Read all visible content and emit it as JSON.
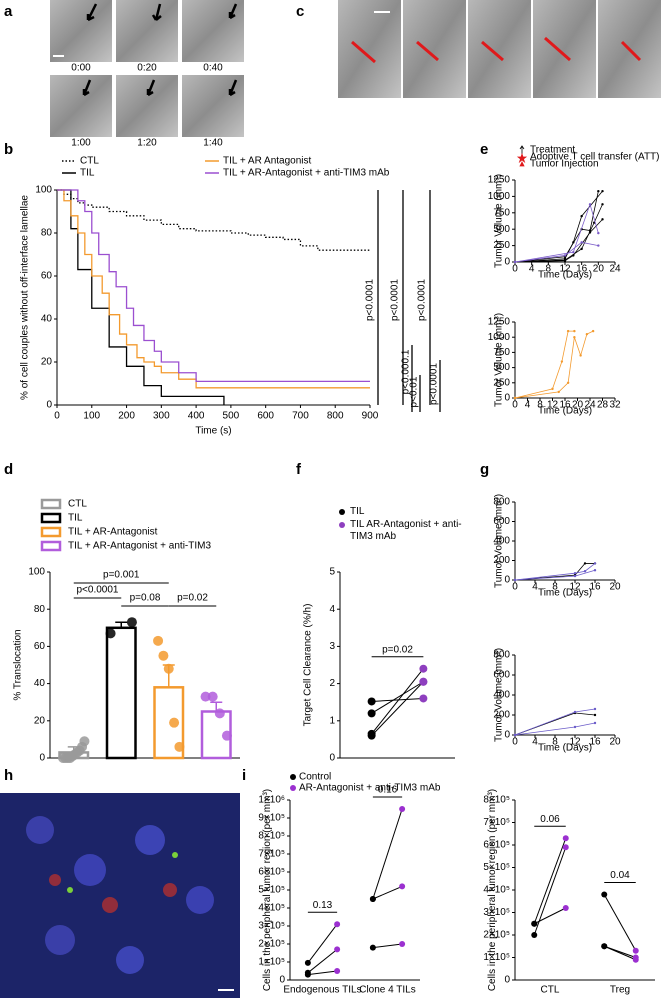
{
  "figure": {
    "panel_labels": [
      "a",
      "b",
      "c",
      "d",
      "e",
      "f",
      "g",
      "h",
      "i"
    ],
    "timestamps": [
      "0:00",
      "0:20",
      "0:40",
      "1:00",
      "1:20",
      "1:40"
    ]
  },
  "chart_data": [
    {
      "type": "line",
      "step": true,
      "xlabel": "Time (s)",
      "ylabel": "% of cell couples without off-interface lamellae",
      "xlim": [
        0,
        900
      ],
      "xticks": [
        0,
        100,
        200,
        300,
        400,
        500,
        600,
        700,
        800,
        900
      ],
      "ylim": [
        0,
        100
      ],
      "yticks": [
        0,
        20,
        40,
        60,
        80,
        100
      ],
      "series": [
        {
          "name": "CTL",
          "color": "#000000",
          "style": "dotted",
          "x": [
            0,
            20,
            40,
            60,
            80,
            100,
            150,
            200,
            250,
            300,
            350,
            400,
            450,
            500,
            550,
            600,
            650,
            700,
            750,
            900
          ],
          "values": [
            100,
            98,
            96,
            94,
            93,
            92,
            90,
            88,
            86,
            84,
            82,
            81,
            81,
            80,
            79,
            78,
            77,
            74,
            72,
            72
          ]
        },
        {
          "name": "TIL",
          "color": "#000000",
          "style": "solid",
          "x": [
            0,
            40,
            60,
            100,
            150,
            200,
            250,
            300,
            400,
            480
          ],
          "values": [
            100,
            82,
            63,
            45,
            27,
            18,
            9,
            4,
            4,
            0
          ]
        },
        {
          "name": "TIL + AR Antagonist",
          "color": "#f39a2e",
          "style": "solid",
          "x": [
            0,
            20,
            40,
            60,
            80,
            100,
            130,
            150,
            180,
            200,
            230,
            250,
            280,
            300,
            350,
            400,
            480,
            900
          ],
          "values": [
            100,
            95,
            88,
            80,
            70,
            60,
            52,
            42,
            33,
            28,
            22,
            20,
            18,
            15,
            12,
            8,
            8,
            8
          ]
        },
        {
          "name": "TIL + AR-Antagonist  + anti-TIM3 mAb",
          "color": "#9b4fd0",
          "style": "solid",
          "x": [
            0,
            60,
            80,
            100,
            120,
            150,
            170,
            200,
            220,
            250,
            280,
            300,
            350,
            400,
            450,
            900
          ],
          "values": [
            100,
            95,
            90,
            80,
            70,
            62,
            55,
            45,
            37,
            30,
            25,
            20,
            15,
            11,
            11,
            11
          ]
        }
      ],
      "annotations": [
        "p<0.0001",
        "p<0.0001",
        "p<0.0001",
        "p<0.000.1",
        "p<0.01",
        "p<0.0001"
      ]
    },
    {
      "type": "bar",
      "ylabel": "% Translocation",
      "ylim": [
        0,
        100
      ],
      "yticks": [
        0,
        20,
        40,
        60,
        80,
        100
      ],
      "categories": [
        "CTL",
        "TIL",
        "TIL + AR-Antagonist",
        "TIL + AR-Antagonist + anti-TIM3"
      ],
      "colors": [
        "#9a9a9a",
        "#000000",
        "#f39a2e",
        "#b15ddc"
      ],
      "values": [
        3,
        70,
        38,
        25
      ],
      "errors": [
        3,
        3,
        12,
        5
      ],
      "points": [
        [
          0,
          0,
          0,
          0,
          1,
          2,
          3,
          4,
          6,
          9
        ],
        [
          67,
          73
        ],
        [
          63,
          55,
          48,
          19,
          6
        ],
        [
          33,
          33,
          24,
          12
        ]
      ],
      "annotations": [
        "p=0.001",
        "p<0.0001",
        "p=0.08",
        "p=0.02"
      ]
    },
    {
      "type": "paired",
      "ylabel": "Target Cell Clearance (%/h)",
      "ylim": [
        0,
        5
      ],
      "yticks": [
        0,
        1,
        2,
        3,
        4,
        5
      ],
      "categories": [
        null
      ],
      "series": [
        {
          "name": "TIL",
          "color": "#000000",
          "values": [
            [
              1.52,
              1.2,
              0.65,
              0.6
            ]
          ]
        },
        {
          "name": "TIL AR-Antagonist + anti-TIM3 mAb",
          "color": "#8e3fbf",
          "values": [
            [
              1.6,
              2.05,
              2.4,
              2.05
            ]
          ]
        }
      ],
      "pvalues": [
        "p=0.02"
      ]
    },
    {
      "type": "line",
      "xlabel": "Time (Days)",
      "ylabel": "Tumor Volume (mm³)",
      "xlim": [
        0,
        24
      ],
      "xticks": [
        0,
        4,
        8,
        12,
        16,
        20,
        24
      ],
      "ylim": [
        0,
        1250
      ],
      "yticks": [
        0,
        250,
        500,
        750,
        1000,
        1250
      ],
      "symbol_legend": [
        "Treatment",
        "Adoptive T cell transfer (ATT)",
        "Tumor Injection"
      ],
      "series": [
        {
          "color": "#000000",
          "x": [
            0,
            12,
            16,
            18,
            20
          ],
          "values": [
            0,
            80,
            500,
            480,
            1080
          ]
        },
        {
          "color": "#000000",
          "x": [
            0,
            12,
            14,
            16,
            21
          ],
          "values": [
            0,
            50,
            300,
            700,
            1080
          ]
        },
        {
          "color": "#000000",
          "x": [
            0,
            12,
            16,
            19,
            21
          ],
          "values": [
            0,
            30,
            200,
            600,
            880
          ]
        },
        {
          "color": "#000000",
          "x": [
            0,
            12,
            14,
            18,
            21
          ],
          "values": [
            0,
            20,
            100,
            450,
            650
          ]
        },
        {
          "color": "#7b5cc9",
          "x": [
            0,
            12,
            16,
            20
          ],
          "values": [
            0,
            100,
            300,
            250
          ]
        },
        {
          "color": "#7b5cc9",
          "x": [
            0,
            14,
            18,
            20
          ],
          "values": [
            0,
            150,
            880,
            440
          ]
        }
      ]
    },
    {
      "type": "line",
      "xlabel": "Time (Days)",
      "ylabel": "Tumor Volume (mm³)",
      "xlim": [
        0,
        32
      ],
      "xticks": [
        0,
        4,
        8,
        12,
        16,
        20,
        24,
        28,
        32
      ],
      "ylim": [
        0,
        1250
      ],
      "yticks": [
        0,
        250,
        500,
        750,
        1000,
        1250
      ],
      "series": [
        {
          "color": "#f39a2e",
          "x": [
            0,
            12,
            15,
            17,
            19
          ],
          "values": [
            0,
            150,
            600,
            1100,
            1100
          ]
        },
        {
          "color": "#f39a2e",
          "x": [
            0,
            14,
            17,
            19,
            21,
            23,
            25
          ],
          "values": [
            0,
            100,
            250,
            1000,
            700,
            1050,
            1100
          ]
        }
      ]
    },
    {
      "type": "line",
      "xlabel": "Time (Days)",
      "ylabel": "Tumor Volume (mm³)",
      "xlim": [
        0,
        20
      ],
      "xticks": [
        0,
        4,
        8,
        12,
        16,
        20
      ],
      "ylim": [
        0,
        800
      ],
      "yticks": [
        0,
        200,
        400,
        600,
        800
      ],
      "series": [
        {
          "color": "#000000",
          "x": [
            0,
            12,
            14,
            16
          ],
          "values": [
            0,
            50,
            170,
            170
          ]
        },
        {
          "color": "#6b5cc9",
          "x": [
            0,
            12,
            14,
            16
          ],
          "values": [
            0,
            70,
            90,
            170
          ]
        },
        {
          "color": "#6b5cc9",
          "x": [
            0,
            12,
            16
          ],
          "values": [
            0,
            40,
            100
          ]
        }
      ]
    },
    {
      "type": "line",
      "xlabel": "Time (Days)",
      "ylabel": "Tumor Volume (mm³)",
      "xlim": [
        0,
        20
      ],
      "xticks": [
        0,
        4,
        8,
        12,
        16,
        20
      ],
      "ylim": [
        0,
        800
      ],
      "yticks": [
        0,
        200,
        400,
        600,
        800
      ],
      "series": [
        {
          "color": "#000000",
          "x": [
            0,
            12,
            16
          ],
          "values": [
            0,
            220,
            200
          ]
        },
        {
          "color": "#6b5cc9",
          "x": [
            0,
            12,
            16
          ],
          "values": [
            0,
            80,
            120
          ]
        },
        {
          "color": "#6b5cc9",
          "x": [
            0,
            12,
            16
          ],
          "values": [
            0,
            230,
            260
          ]
        }
      ]
    },
    {
      "type": "paired",
      "ylabel": "Cells in the peripheral tumor region (per mm³)",
      "ylim": [
        0,
        1000000
      ],
      "yticks": [
        0,
        {
          "value": 100000,
          "label": "1×10⁵"
        },
        {
          "value": 200000,
          "label": "2×10⁵"
        },
        {
          "value": 300000,
          "label": "3×10⁵"
        },
        {
          "value": 400000,
          "label": "4×10⁵"
        },
        {
          "value": 500000,
          "label": "5×10⁵"
        },
        {
          "value": 600000,
          "label": "6×10⁵"
        },
        {
          "value": 700000,
          "label": "7×10⁵"
        },
        {
          "value": 800000,
          "label": "8×10⁵"
        },
        {
          "value": 900000,
          "label": "9×10⁵"
        },
        {
          "value": 1000000,
          "label": "1×10⁶"
        }
      ],
      "categories": [
        "Endogenous TILs",
        "Clone 4 TILs"
      ],
      "series": [
        {
          "name": "Control",
          "color": "#000000",
          "values": [
            [
              95000,
              40000,
              30000
            ],
            [
              450000,
              450000,
              180000
            ]
          ]
        },
        {
          "name": "AR-Antagonist + anti-TIM3 mAb",
          "color": "#9b30d0",
          "values": [
            [
              310000,
              170000,
              50000
            ],
            [
              950000,
              520000,
              200000
            ]
          ]
        }
      ],
      "pvalues": [
        "0.13",
        "0.16"
      ]
    },
    {
      "type": "paired",
      "ylabel": "Cells in the peripheral tumor region (per mm³)",
      "ylim": [
        0,
        800000
      ],
      "yticks": [
        0,
        {
          "value": 100000,
          "label": "1×10⁵"
        },
        {
          "value": 200000,
          "label": "2×10⁵"
        },
        {
          "value": 300000,
          "label": "3×10⁵"
        },
        {
          "value": 400000,
          "label": "4×10⁵"
        },
        {
          "value": 500000,
          "label": "5×10⁵"
        },
        {
          "value": 600000,
          "label": "6×10⁵"
        },
        {
          "value": 700000,
          "label": "7×10⁵"
        },
        {
          "value": 800000,
          "label": "8×10⁵"
        }
      ],
      "categories": [
        "CTL",
        "Treg"
      ],
      "series": [
        {
          "color": "#000000",
          "values": [
            [
              250000,
              200000,
              250000
            ],
            [
              380000,
              150000,
              150000
            ]
          ]
        },
        {
          "color": "#9b30d0",
          "values": [
            [
              630000,
              590000,
              320000
            ],
            [
              130000,
              100000,
              90000
            ]
          ]
        }
      ],
      "pvalues": [
        "0.06",
        "0.04"
      ]
    }
  ]
}
